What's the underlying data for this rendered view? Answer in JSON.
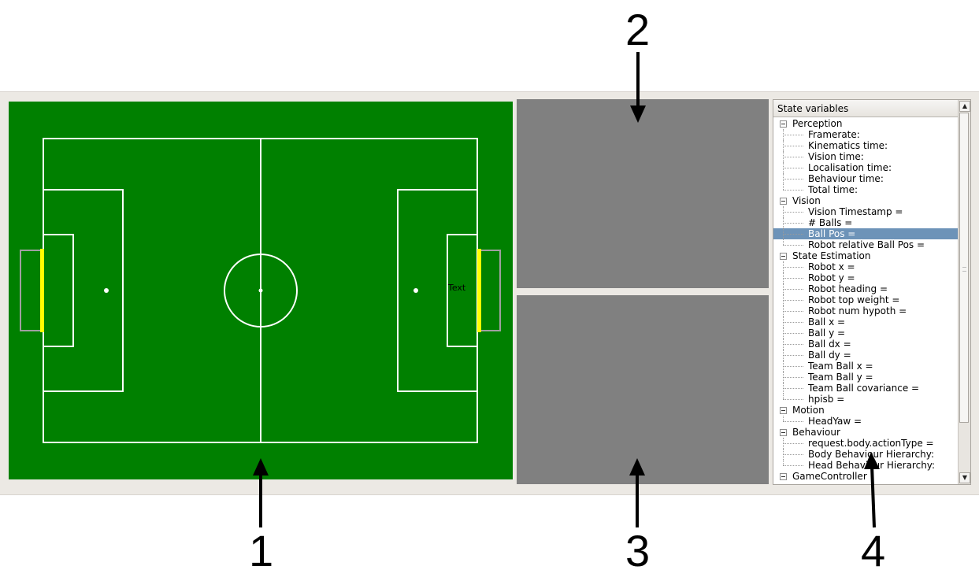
{
  "callouts": [
    "1",
    "2",
    "3",
    "4"
  ],
  "field": {
    "overlay_text": "Text",
    "colors": {
      "grass": "#008000",
      "lines": "#ffffff",
      "goal_posts": "#ffff00",
      "goal_net": "#a0a0a0"
    }
  },
  "state_tree": {
    "header": "State variables",
    "groups": [
      {
        "label": "Perception",
        "items": [
          "Framerate:",
          "Kinematics time:",
          "Vision time:",
          "Localisation time:",
          "Behaviour time:",
          "Total time:"
        ]
      },
      {
        "label": "Vision",
        "items": [
          "Vision Timestamp =",
          "# Balls =",
          "Ball Pos =",
          "Robot relative Ball Pos ="
        ]
      },
      {
        "label": "State Estimation",
        "items": [
          "Robot x =",
          "Robot y =",
          "Robot heading =",
          "Robot top weight =",
          "Robot num hypoth =",
          "Ball x =",
          "Ball y =",
          "Ball dx =",
          "Ball dy =",
          "Team Ball x =",
          "Team Ball y =",
          "Team Ball covariance =",
          "hpisb ="
        ]
      },
      {
        "label": "Motion",
        "items": [
          "HeadYaw ="
        ]
      },
      {
        "label": "Behaviour",
        "items": [
          "request.body.actionType =",
          "Body Behaviour Hierarchy:",
          "Head Behaviour Hierarchy:"
        ]
      },
      {
        "label": "GameController",
        "items": []
      }
    ],
    "selected_item": "Ball Pos =",
    "colors": {
      "selected": "#6d93b8"
    }
  }
}
